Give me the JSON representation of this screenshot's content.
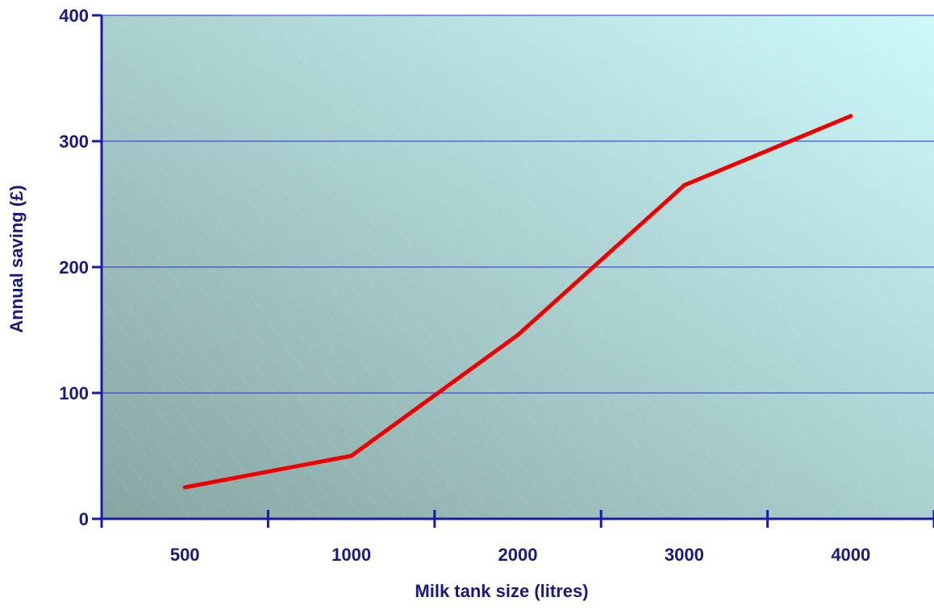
{
  "chart_data": {
    "type": "line",
    "categories": [
      "500",
      "1000",
      "2000",
      "3000",
      "4000"
    ],
    "series": [
      {
        "values": [
          25,
          50,
          146,
          265,
          320
        ],
        "color": "#ee0000"
      }
    ],
    "title": "",
    "xlabel": "Milk tank size (litres)",
    "ylabel": "Annual saving (£)",
    "ylim": [
      0,
      400
    ],
    "yticks": [
      "0",
      "100",
      "200",
      "300",
      "400"
    ],
    "grid": true,
    "grid_color": "#2b2bd9",
    "axis_color": "#1a1aa8",
    "label_color": "#1a1a7a",
    "plot_background": {
      "gradient_from": "#86a6a2",
      "gradient_to": "#cdf9fb",
      "pattern": "diagonal-hatch"
    }
  }
}
